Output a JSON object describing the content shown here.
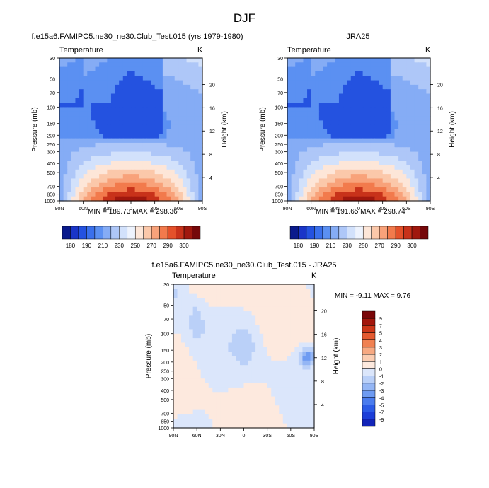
{
  "title": "DJF",
  "colors": {
    "page_bg": "#ffffff",
    "abs_palette": [
      "#0a1a8c",
      "#1a35c8",
      "#2452e0",
      "#3a70ec",
      "#5b90f2",
      "#85acf5",
      "#aec7f8",
      "#d2e1fb",
      "#eef3fd",
      "#fde6d8",
      "#fbc8aa",
      "#f8a27a",
      "#f27a4c",
      "#e4512a",
      "#c8321a",
      "#a0180e",
      "#75080a"
    ],
    "diff_palette": [
      "#08108a",
      "#1224b8",
      "#1c3ed8",
      "#2b5be6",
      "#4a7cee",
      "#6e9bf2",
      "#94b6f5",
      "#bad0f8",
      "#dbe6fb",
      "#fde9de",
      "#fbcdb2",
      "#f7a982",
      "#f08152",
      "#e45a30",
      "#cc3618",
      "#a3160c",
      "#7a0608"
    ]
  },
  "panels": [
    {
      "title": "f.e15a6.FAMIPC5.ne30_ne30.Club_Test.015 (yrs 1979-1980)",
      "left_label": "Temperature",
      "units": "K",
      "stats": "MIN = 189.73  MAX = 298.36",
      "chart_data": {
        "type": "heatmap",
        "variable": "Temperature",
        "units": "K",
        "x": [
          "90N",
          "60N",
          "30N",
          "0",
          "30S",
          "60S",
          "90S"
        ],
        "y": [
          30,
          50,
          70,
          100,
          150,
          200,
          250,
          300,
          400,
          500,
          700,
          850,
          1000
        ],
        "ylabel": "Pressure (mb)",
        "y2label": "Height (km)",
        "y2_ticks": [
          20,
          16,
          12,
          8,
          4
        ],
        "min": 189.73,
        "max": 298.36,
        "colorbar_labels": [
          "180",
          "190",
          "210",
          "230",
          "250",
          "270",
          "290",
          "300"
        ]
      }
    },
    {
      "title": "JRA25",
      "left_label": "Temperature",
      "units": "K",
      "stats": "MIN = 191.65  MAX = 298.74",
      "chart_data": {
        "type": "heatmap",
        "variable": "Temperature",
        "units": "K",
        "x": [
          "90N",
          "60N",
          "30N",
          "0",
          "30S",
          "60S",
          "90S"
        ],
        "y": [
          30,
          50,
          70,
          100,
          150,
          200,
          250,
          300,
          400,
          500,
          700,
          850,
          1000
        ],
        "ylabel": "Pressure (mb)",
        "y2label": "Height (km)",
        "y2_ticks": [
          20,
          16,
          12,
          8,
          4
        ],
        "min": 191.65,
        "max": 298.74,
        "colorbar_labels": [
          "180",
          "190",
          "210",
          "230",
          "250",
          "270",
          "290",
          "300"
        ]
      }
    },
    {
      "title": "f.e15a6.FAMIPC5.ne30_ne30.Club_Test.015 - JRA25",
      "left_label": "Temperature",
      "units": "K",
      "stats": "MIN = -9.11  MAX =  9.76",
      "chart_data": {
        "type": "heatmap",
        "variable": "Temperature",
        "units": "K",
        "x": [
          "90N",
          "60N",
          "30N",
          "0",
          "30S",
          "60S",
          "90S"
        ],
        "y": [
          30,
          50,
          70,
          100,
          150,
          200,
          250,
          300,
          400,
          500,
          700,
          850,
          1000
        ],
        "ylabel": "Pressure (mb)",
        "y2label": "Height (km)",
        "y2_ticks": [
          20,
          16,
          12,
          8,
          4
        ],
        "min": -9.11,
        "max": 9.76,
        "colorbar_labels": [
          "9",
          "7",
          "5",
          "4",
          "3",
          "2",
          "1",
          "0",
          "-1",
          "-2",
          "-3",
          "-4",
          "-5",
          "-7",
          "-9"
        ]
      }
    }
  ]
}
